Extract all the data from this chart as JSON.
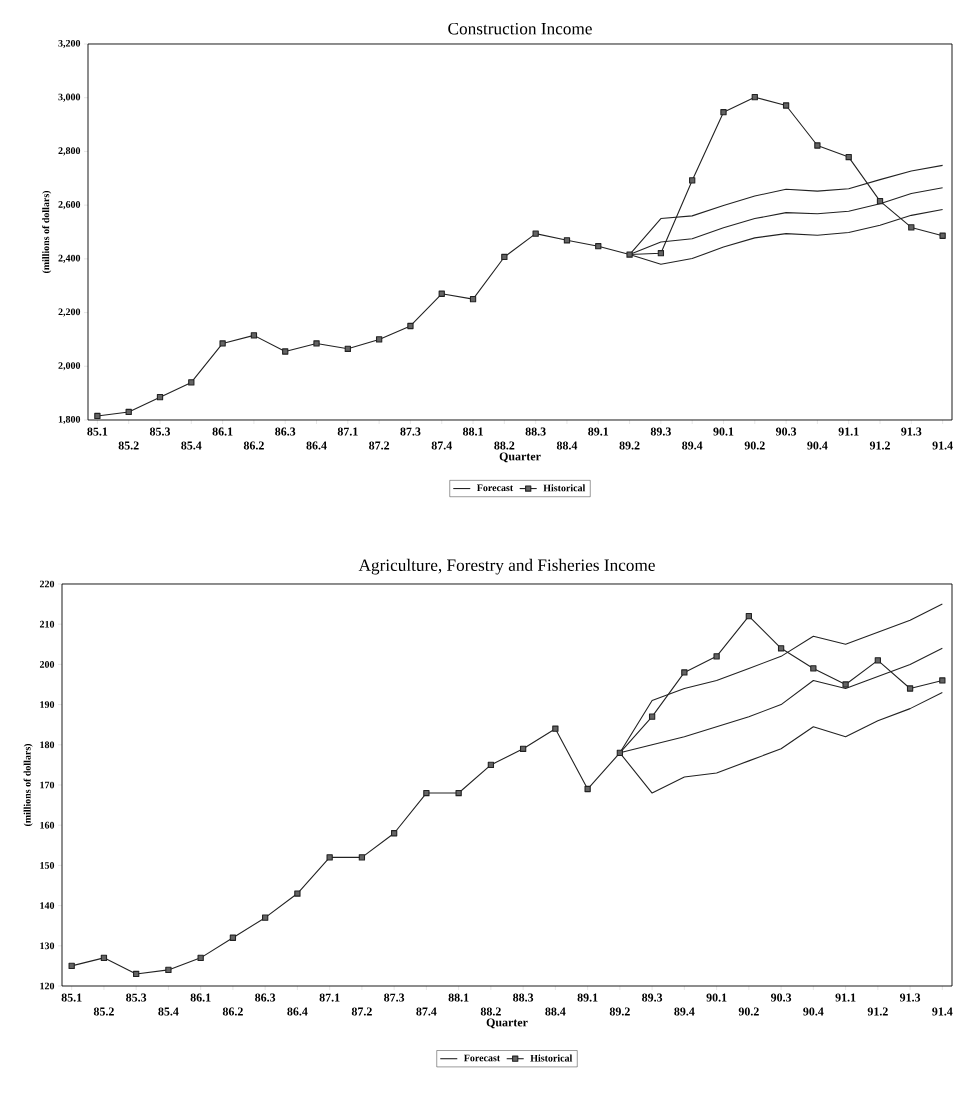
{
  "chart_data": [
    {
      "type": "line",
      "title": "Construction Income",
      "xlabel": "Quarter",
      "ylabel": "(millions of dollars)",
      "categories": [
        "85.1",
        "85.2",
        "85.3",
        "85.4",
        "86.1",
        "86.2",
        "86.3",
        "86.4",
        "87.1",
        "87.2",
        "87.3",
        "87.4",
        "88.1",
        "88.2",
        "88.3",
        "88.4",
        "89.1",
        "89.2",
        "89.3",
        "89.4",
        "90.1",
        "90.2",
        "90.3",
        "90.4",
        "91.1",
        "91.2",
        "91.3",
        "91.4"
      ],
      "ylim": [
        1800,
        3200
      ],
      "yticks": [
        {
          "value": 1800,
          "label": "1,800"
        },
        {
          "value": 2000,
          "label": "2,000"
        },
        {
          "value": 2200,
          "label": "2,200"
        },
        {
          "value": 2400,
          "label": "2,400"
        },
        {
          "value": 2600,
          "label": "2,600"
        },
        {
          "value": 2800,
          "label": "2,800"
        },
        {
          "value": 3000,
          "label": "3,000"
        },
        {
          "value": 3200,
          "label": "3,200"
        }
      ],
      "legend": "bottom",
      "series": [
        {
          "name": "Forecast",
          "color": "#222222",
          "marker": "none",
          "values": [
            null,
            null,
            null,
            null,
            null,
            null,
            null,
            null,
            null,
            null,
            null,
            null,
            null,
            null,
            null,
            null,
            null,
            2416,
            2550,
            2560,
            2599,
            2634,
            2659,
            2652,
            2661,
            2695,
            2727,
            2748
          ]
        },
        {
          "color": "#222222",
          "marker": "none",
          "values": [
            null,
            null,
            null,
            null,
            null,
            null,
            null,
            null,
            null,
            null,
            null,
            null,
            null,
            null,
            null,
            null,
            null,
            2416,
            2463,
            2475,
            2516,
            2550,
            2572,
            2568,
            2577,
            2605,
            2643,
            2665
          ]
        },
        {
          "color": "#222222",
          "marker": "none",
          "values": [
            null,
            null,
            null,
            null,
            null,
            null,
            null,
            null,
            null,
            null,
            null,
            null,
            null,
            null,
            null,
            null,
            null,
            2416,
            2380,
            2401,
            2444,
            2478,
            2494,
            2488,
            2498,
            2525,
            2562,
            2584
          ]
        },
        {
          "name": "Historical",
          "color": "#222222",
          "marker": "square",
          "values": [
            1815,
            1830,
            1885,
            1940,
            2085,
            2115,
            2055,
            2085,
            2065,
            2100,
            2150,
            2270,
            2250,
            2407,
            2494,
            2469,
            2447,
            2416,
            2421,
            2692,
            2946,
            3002,
            2971,
            2822,
            2779,
            2615,
            2517,
            2486
          ]
        }
      ]
    },
    {
      "type": "line",
      "title": "Agriculture, Forestry and Fisheries Income",
      "xlabel": "Quarter",
      "ylabel": "(millions of dollars)",
      "categories": [
        "85.1",
        "85.2",
        "85.3",
        "85.4",
        "86.1",
        "86.2",
        "86.3",
        "86.4",
        "87.1",
        "87.2",
        "87.3",
        "87.4",
        "88.1",
        "88.2",
        "88.3",
        "88.4",
        "89.1",
        "89.2",
        "89.3",
        "89.4",
        "90.1",
        "90.2",
        "90.3",
        "90.4",
        "91.1",
        "91.2",
        "91.3",
        "91.4"
      ],
      "ylim": [
        120,
        220
      ],
      "yticks": [
        120,
        130,
        140,
        150,
        160,
        170,
        180,
        190,
        200,
        210,
        220
      ],
      "legend": "bottom",
      "series": [
        {
          "name": "Forecast",
          "color": "#222222",
          "marker": "none",
          "values": [
            null,
            null,
            null,
            null,
            null,
            null,
            null,
            null,
            null,
            null,
            null,
            null,
            null,
            null,
            null,
            null,
            null,
            178,
            191,
            194,
            196,
            199,
            202,
            207,
            205,
            208,
            211,
            215
          ]
        },
        {
          "color": "#222222",
          "marker": "none",
          "values": [
            null,
            null,
            null,
            null,
            null,
            null,
            null,
            null,
            null,
            null,
            null,
            null,
            null,
            null,
            null,
            null,
            null,
            178,
            180,
            182,
            184.5,
            187,
            190,
            196,
            194,
            197,
            200,
            204
          ]
        },
        {
          "color": "#222222",
          "marker": "none",
          "values": [
            null,
            null,
            null,
            null,
            null,
            null,
            null,
            null,
            null,
            null,
            null,
            null,
            null,
            null,
            null,
            null,
            null,
            178,
            168,
            172,
            173,
            176,
            179,
            184.5,
            182,
            186,
            189,
            193
          ]
        },
        {
          "name": "Historical",
          "color": "#222222",
          "marker": "square",
          "values": [
            125,
            127,
            123,
            124,
            127,
            132,
            137,
            143,
            152,
            152,
            158,
            168,
            168,
            175,
            179,
            184,
            169,
            178,
            187,
            198,
            202,
            212,
            204,
            199,
            195,
            201,
            194,
            196
          ]
        }
      ]
    }
  ]
}
